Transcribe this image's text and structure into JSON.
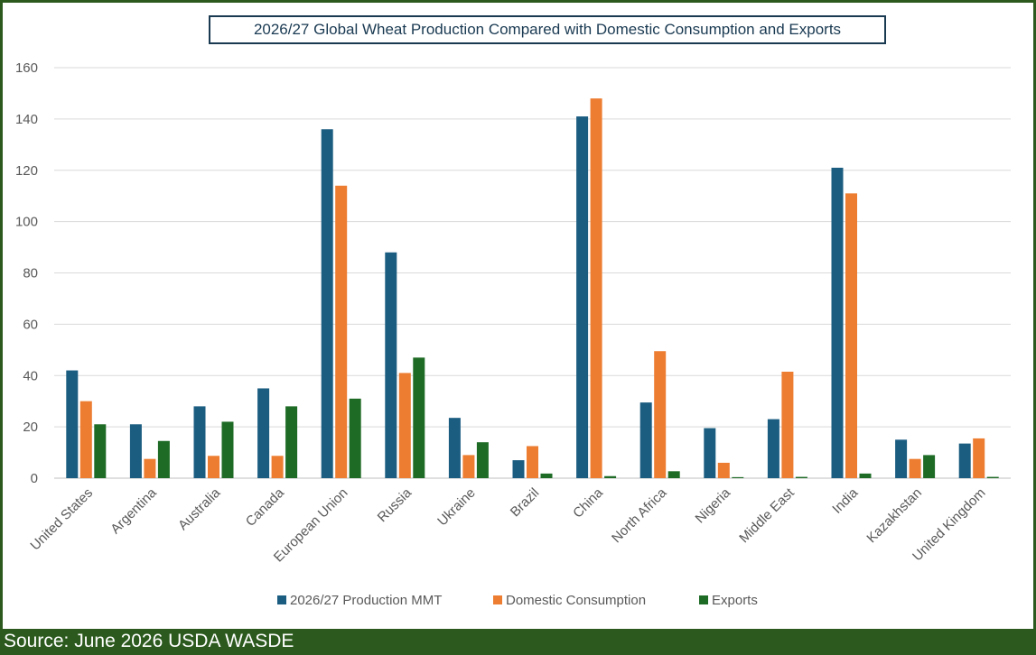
{
  "footer": {
    "source": "Source:  June 2026 USDA WASDE"
  },
  "chart_data": {
    "type": "bar",
    "title": "2026/27 Global Wheat Production Compared with Domestic Consumption and Exports",
    "xlabel": "",
    "ylabel": "",
    "ylim": [
      0,
      160
    ],
    "yticks": [
      "0",
      "20",
      "40",
      "60",
      "80",
      "100",
      "120",
      "140",
      "160"
    ],
    "grid": true,
    "legend_position": "bottom",
    "categories": [
      "United States",
      "Argentina",
      "Australia",
      "Canada",
      "European Union",
      "Russia",
      "Ukraine",
      "Brazil",
      "China",
      "North Africa",
      "Nigeria",
      "Middle East",
      "India",
      "Kazakhstan",
      "United Kingdom"
    ],
    "series": [
      {
        "name": "2026/27 Production MMT",
        "color": "#1b5d81",
        "values": [
          42,
          21,
          28,
          35,
          136,
          88,
          23.5,
          7,
          141,
          29.5,
          19.5,
          23,
          121,
          15,
          13.5
        ]
      },
      {
        "name": "Domestic Consumption",
        "color": "#ed7d31",
        "values": [
          30,
          7.5,
          8.7,
          8.7,
          114,
          41,
          9,
          12.5,
          148,
          49.5,
          6,
          41.5,
          111,
          7.5,
          15.5
        ]
      },
      {
        "name": "Exports",
        "color": "#1e6b26",
        "values": [
          21,
          14.5,
          22,
          28,
          31,
          47,
          14,
          1.8,
          0.8,
          2.7,
          0.4,
          0.5,
          1.8,
          9,
          0.5
        ]
      }
    ]
  }
}
